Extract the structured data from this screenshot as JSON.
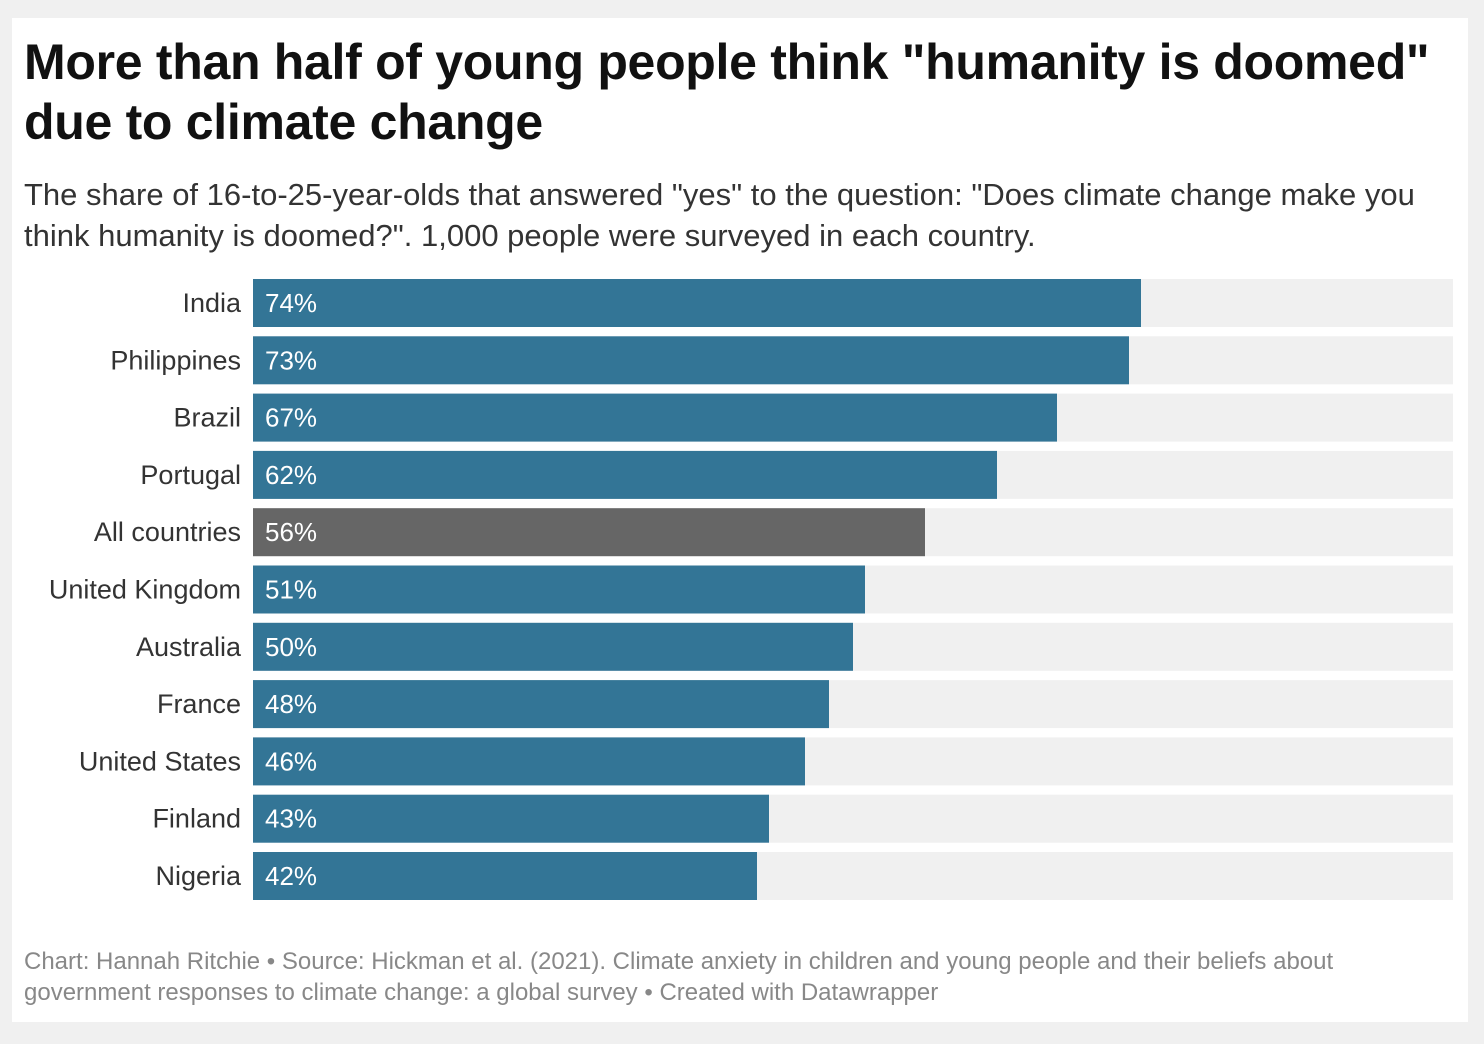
{
  "header": {
    "title": "More than half of young people think \"humanity is doomed\" due to climate change",
    "subtitle": "The share of 16-to-25-year-olds that answered \"yes\" to the question: \"Does climate change make you think humanity is doomed?\". 1,000 people were surveyed in each country."
  },
  "footer": {
    "chart_credit": "Chart: Hannah Ritchie",
    "separator": "•",
    "source": "Source: Hickman et al. (2021). Climate anxiety in children and young people and their beliefs about government responses to climate change: a global survey",
    "created_with": "Created with Datawrapper"
  },
  "colors": {
    "bar": "#337596",
    "highlight_bar": "#666666",
    "track": "#f0f0f0",
    "page_background": "#f0f0f0",
    "card_background": "#ffffff"
  },
  "chart_data": {
    "type": "bar",
    "orientation": "horizontal",
    "title": "More than half of young people think \"humanity is doomed\" due to climate change",
    "xlabel": "",
    "ylabel": "",
    "xlim": [
      0,
      100
    ],
    "unit": "%",
    "grid": false,
    "legend": "none",
    "categories": [
      "India",
      "Philippines",
      "Brazil",
      "Portugal",
      "All countries",
      "United Kingdom",
      "Australia",
      "France",
      "United States",
      "Finland",
      "Nigeria"
    ],
    "values": [
      74,
      73,
      67,
      62,
      56,
      51,
      50,
      48,
      46,
      43,
      42
    ],
    "value_labels": [
      "74%",
      "73%",
      "67%",
      "62%",
      "56%",
      "51%",
      "50%",
      "48%",
      "46%",
      "43%",
      "42%"
    ],
    "highlighted_category": "All countries"
  }
}
